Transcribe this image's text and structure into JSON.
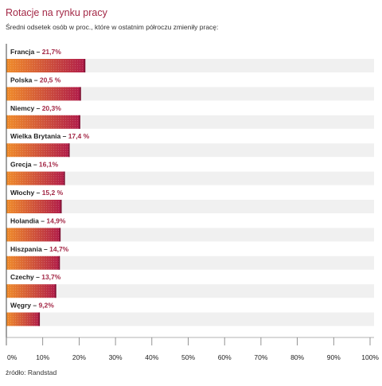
{
  "title": "Rotacje na rynku pracy",
  "subtitle": "Średni odsetek osób w proc., które w ostatnim półroczu zmieniły pracę:",
  "source": "źródło: Randstad",
  "colors": {
    "bar_start": "#f08c2a",
    "bar_end": "#b01c4a",
    "track": "#f0f0f0",
    "value_text": "#a32846"
  },
  "chart_data": {
    "type": "bar",
    "orientation": "horizontal",
    "categories": [
      "Francja",
      "Polska",
      "Niemcy",
      "Wielka Brytania",
      "Grecja",
      "Włochy",
      "Holandia",
      "Hiszpania",
      "Czechy",
      "Węgry"
    ],
    "values": [
      21.7,
      20.5,
      20.3,
      17.4,
      16.1,
      15.2,
      14.9,
      14.7,
      13.7,
      9.2
    ],
    "value_labels": [
      "21,7%",
      "20,5 %",
      "20,3%",
      "17,4 %",
      "16,1%",
      "15,2 %",
      "14,9%",
      "14,7%",
      "13,7%",
      "9,2%"
    ],
    "xlim": [
      0,
      100
    ],
    "tick_labels": [
      "0%",
      "10%",
      "20%",
      "30%",
      "40%",
      "50%",
      "60%",
      "70%",
      "80%",
      "90%",
      "100%"
    ],
    "grid": false
  }
}
